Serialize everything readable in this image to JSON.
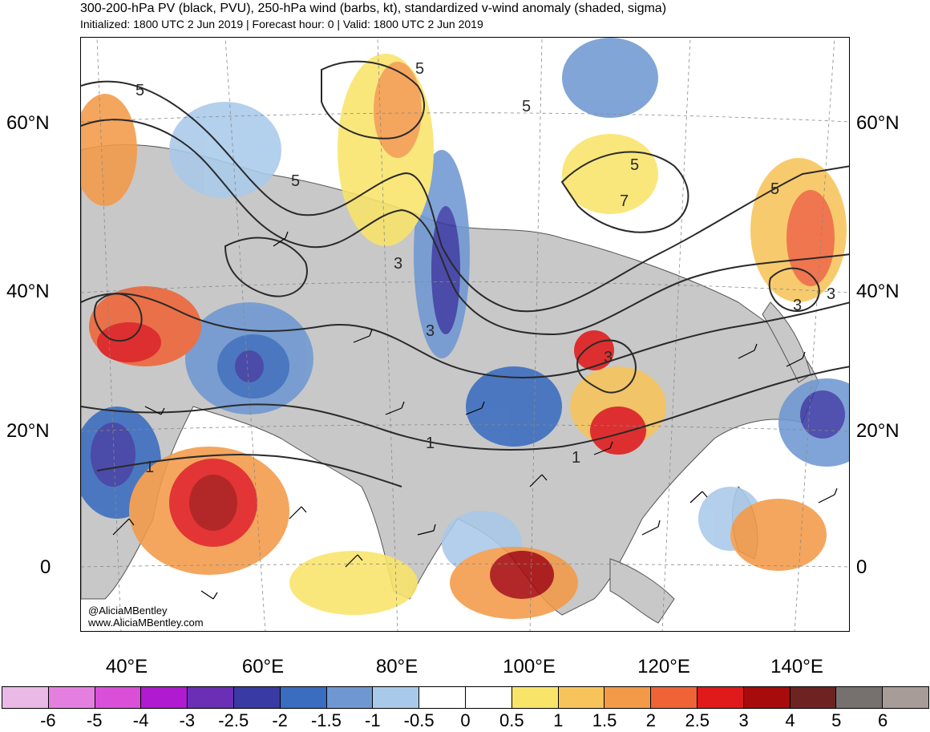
{
  "header": {
    "title": "300-200-hPa PV (black, PVU), 250-hPa wind (barbs, kt), standardized v-wind anomaly (shaded, sigma)",
    "subtitle": "Initialized: 1800 UTC 2 Jun 2019 | Forecast hour: 0 | Valid: 1800 UTC 2 Jun 2019"
  },
  "map": {
    "lat_labels": [
      "60°N",
      "40°N",
      "20°N",
      "0"
    ],
    "lon_labels": [
      "40°E",
      "60°E",
      "80°E",
      "100°E",
      "120°E",
      "140°E"
    ],
    "contour_labels": [
      "5",
      "5",
      "5",
      "5",
      "3",
      "3",
      "3",
      "3",
      "1",
      "1",
      "5",
      "7",
      "5",
      "3",
      "1"
    ],
    "credit_handle": "@AliciaMBentley",
    "credit_url": "www.AliciaMBentley.com",
    "colors": {
      "land": "#c8c8c8",
      "coast": "#555555",
      "contour": "#2a2a2a"
    }
  },
  "colorbar": {
    "colors": [
      "#ebb9e6",
      "#e47fe0",
      "#d94fd8",
      "#b01ad0",
      "#6a2fb5",
      "#3a3aa5",
      "#3a6cc0",
      "#6f98d2",
      "#a9c9ea",
      "#ffffff",
      "#ffffff",
      "#f9e46a",
      "#f6c45a",
      "#f39a48",
      "#ee6437",
      "#e01a1a",
      "#a80b0b",
      "#6e2323",
      "#76706e",
      "#a89c98"
    ],
    "labels": [
      "-6",
      "-5",
      "-4",
      "-3",
      "-2.5",
      "-2",
      "-1.5",
      "-1",
      "-0.5",
      "0",
      "0.5",
      "1",
      "1.5",
      "2",
      "2.5",
      "3",
      "4",
      "5",
      "6"
    ]
  }
}
